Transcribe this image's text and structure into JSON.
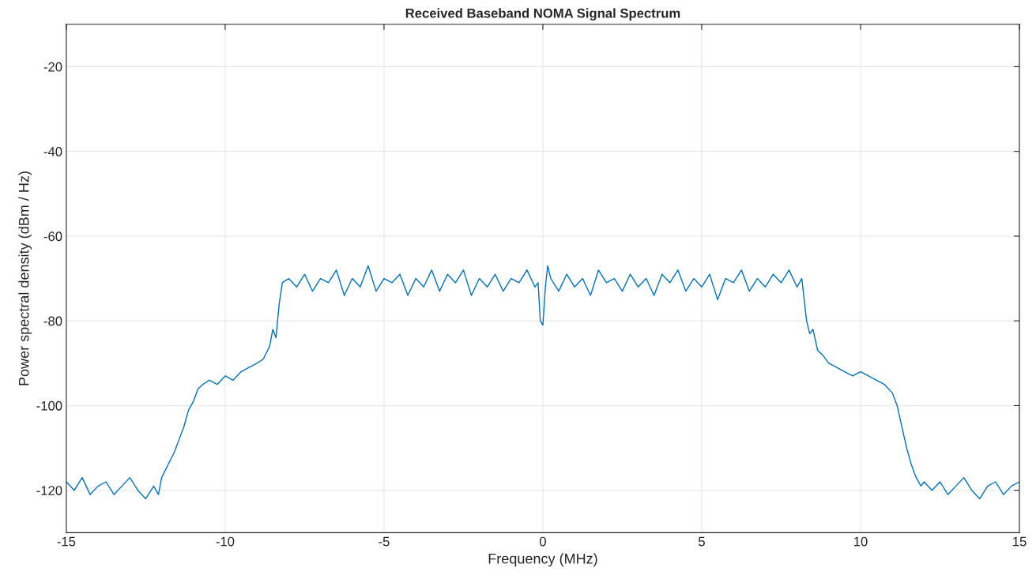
{
  "chart_data": {
    "type": "line",
    "title": "Received Baseband NOMA Signal Spectrum",
    "xlabel": "Frequency (MHz)",
    "ylabel": "Power spectral density (dBm / Hz)",
    "xlim": [
      -15,
      15
    ],
    "ylim": [
      -130,
      -10
    ],
    "xticks": [
      -15,
      -10,
      -5,
      0,
      5,
      10,
      15
    ],
    "yticks": [
      -120,
      -100,
      -80,
      -60,
      -40,
      -20
    ],
    "grid": true,
    "series": [
      {
        "color": "#0072bd",
        "x": [
          -15,
          -14.75,
          -14.5,
          -14.25,
          -14,
          -13.75,
          -13.5,
          -13.25,
          -13,
          -12.75,
          -12.5,
          -12.25,
          -12.1,
          -12.0,
          -11.8,
          -11.6,
          -11.45,
          -11.3,
          -11.15,
          -11.0,
          -10.85,
          -10.7,
          -10.5,
          -10.25,
          -10.0,
          -9.75,
          -9.5,
          -9.25,
          -9.0,
          -8.8,
          -8.6,
          -8.5,
          -8.4,
          -8.3,
          -8.2,
          -8.0,
          -7.75,
          -7.5,
          -7.25,
          -7.0,
          -6.75,
          -6.5,
          -6.25,
          -6.0,
          -5.75,
          -5.5,
          -5.25,
          -5.0,
          -4.75,
          -4.5,
          -4.25,
          -4.0,
          -3.75,
          -3.5,
          -3.25,
          -3.0,
          -2.75,
          -2.5,
          -2.25,
          -2.0,
          -1.75,
          -1.5,
          -1.25,
          -1.0,
          -0.75,
          -0.5,
          -0.25,
          -0.15,
          -0.08,
          0.0,
          0.08,
          0.15,
          0.25,
          0.5,
          0.75,
          1.0,
          1.25,
          1.5,
          1.75,
          2.0,
          2.25,
          2.5,
          2.75,
          3.0,
          3.25,
          3.5,
          3.75,
          4.0,
          4.25,
          4.5,
          4.75,
          5.0,
          5.25,
          5.5,
          5.75,
          6.0,
          6.25,
          6.5,
          6.75,
          7.0,
          7.25,
          7.5,
          7.75,
          8.0,
          8.15,
          8.3,
          8.4,
          8.5,
          8.65,
          8.8,
          9.0,
          9.25,
          9.5,
          9.75,
          10.0,
          10.25,
          10.5,
          10.75,
          11.0,
          11.15,
          11.3,
          11.45,
          11.6,
          11.75,
          11.9,
          12.0,
          12.25,
          12.5,
          12.75,
          13.0,
          13.25,
          13.5,
          13.75,
          14.0,
          14.25,
          14.5,
          14.75,
          15.0
        ],
        "values": [
          -118,
          -120,
          -117,
          -121,
          -119,
          -118,
          -121,
          -119,
          -117,
          -120,
          -122,
          -119,
          -121,
          -117,
          -114,
          -111,
          -108,
          -105,
          -101,
          -99,
          -96,
          -95,
          -94,
          -95,
          -93,
          -94,
          -92,
          -91,
          -90,
          -89,
          -86,
          -82,
          -84,
          -76,
          -71,
          -70,
          -72,
          -69,
          -73,
          -70,
          -71,
          -68,
          -74,
          -70,
          -72,
          -67,
          -73,
          -70,
          -71,
          -69,
          -74,
          -70,
          -72,
          -68,
          -73,
          -69,
          -71,
          -68,
          -74,
          -70,
          -72,
          -69,
          -73,
          -70,
          -71,
          -68,
          -72,
          -71,
          -80,
          -81,
          -72,
          -67,
          -70,
          -73,
          -69,
          -72,
          -70,
          -74,
          -68,
          -71,
          -70,
          -73,
          -69,
          -72,
          -70,
          -74,
          -69,
          -71,
          -68,
          -73,
          -70,
          -72,
          -69,
          -75,
          -70,
          -71,
          -68,
          -73,
          -70,
          -72,
          -69,
          -71,
          -68,
          -72,
          -70,
          -80,
          -83,
          -82,
          -87,
          -88,
          -90,
          -91,
          -92,
          -93,
          -92,
          -93,
          -94,
          -95,
          -97,
          -100,
          -105,
          -110,
          -114,
          -117,
          -119,
          -118,
          -120,
          -118,
          -121,
          -119,
          -117,
          -120,
          -122,
          -119,
          -118,
          -121,
          -119,
          -118
        ]
      }
    ]
  }
}
